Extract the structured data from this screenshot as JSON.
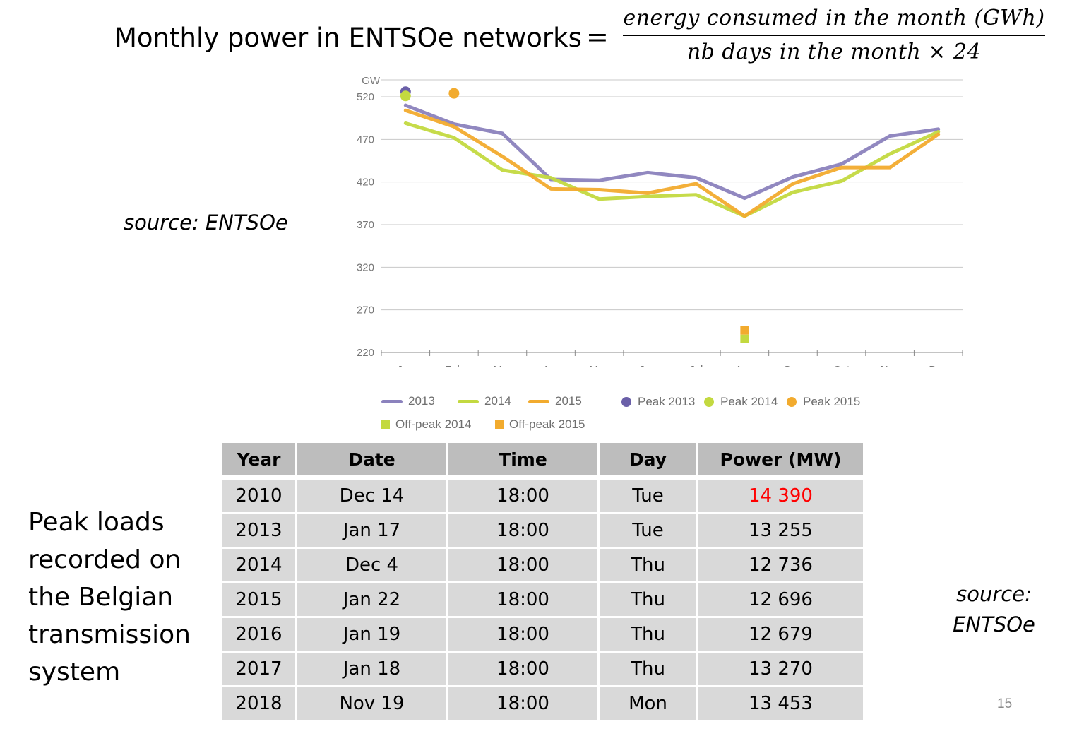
{
  "formula": {
    "lhs": "Monthly power in ENTSOe networks",
    "equals": "=",
    "numerator": "energy consumed in the month (GWh)",
    "denominator": "nb days in the month × 24"
  },
  "source_left": "source: ENTSOe",
  "source_right": {
    "line1": "source:",
    "line2": "ENTSOe"
  },
  "caption": "Peak loads recorded on the Belgian transmission system",
  "page_number": "15",
  "colors": {
    "2013": "#8b82bd",
    "2014": "#c3d940",
    "2015": "#f2ab2e",
    "peak2013": "#6a5fa8",
    "axis": "#777777",
    "grid": "#c8c8c8"
  },
  "chart_data": {
    "type": "line",
    "ylabel": "GW",
    "ylim": [
      220,
      540
    ],
    "yticks": [
      "520",
      "470",
      "420",
      "370",
      "320",
      "270",
      "220"
    ],
    "categories": [
      "Jan",
      "Feb",
      "Mar",
      "Apr",
      "May",
      "Jun",
      "Jul",
      "Aug",
      "Sep",
      "Oct",
      "Nov",
      "Dec"
    ],
    "grid": true,
    "legend_position": "bottom",
    "series": [
      {
        "name": "2013",
        "color": "#8b82bd",
        "values": [
          510,
          488,
          477,
          423,
          422,
          431,
          425,
          401,
          426,
          441,
          474,
          482
        ]
      },
      {
        "name": "2014",
        "color": "#c3d940",
        "values": [
          489,
          472,
          434,
          425,
          400,
          403,
          405,
          380,
          408,
          421,
          453,
          479
        ]
      },
      {
        "name": "2015",
        "color": "#f2ab2e",
        "values": [
          504,
          485,
          450,
          412,
          411,
          407,
          418,
          380,
          418,
          437,
          437,
          476
        ]
      }
    ],
    "peaks": [
      {
        "name": "Peak 2013",
        "color": "#6a5fa8",
        "month": "Jan",
        "value": 526
      },
      {
        "name": "Peak 2014",
        "color": "#c3d940",
        "month": "Jan",
        "value": 521
      },
      {
        "name": "Peak 2015",
        "color": "#f2ab2e",
        "month": "Feb",
        "value": 524
      }
    ],
    "offpeaks": [
      {
        "name": "Off-peak 2014",
        "color": "#c3d940",
        "month": "Aug",
        "value": 236
      },
      {
        "name": "Off-peak 2015",
        "color": "#f2ab2e",
        "month": "Aug",
        "value": 246
      }
    ]
  },
  "legend": {
    "s2013": "2013",
    "s2014": "2014",
    "s2015": "2015",
    "peak2013": "Peak 2013",
    "peak2014": "Peak 2014",
    "peak2015": "Peak 2015",
    "off2014": "Off-peak 2014",
    "off2015": "Off-peak 2015"
  },
  "table": {
    "headers": [
      "Year",
      "Date",
      "Time",
      "Day",
      "Power (MW)"
    ],
    "rows": [
      [
        "2010",
        "Dec 14",
        "18:00",
        "Tue",
        "14 390"
      ],
      [
        "2013",
        "Jan 17",
        "18:00",
        "Tue",
        "13 255"
      ],
      [
        "2014",
        "Dec 4",
        "18:00",
        "Thu",
        "12 736"
      ],
      [
        "2015",
        "Jan 22",
        "18:00",
        "Thu",
        "12 696"
      ],
      [
        "2016",
        "Jan 19",
        "18:00",
        "Thu",
        "12 679"
      ],
      [
        "2017",
        "Jan 18",
        "18:00",
        "Thu",
        "13 270"
      ],
      [
        "2018",
        "Nov 19",
        "18:00",
        "Mon",
        "13 453"
      ]
    ],
    "highlight_color": "#ff0000"
  }
}
